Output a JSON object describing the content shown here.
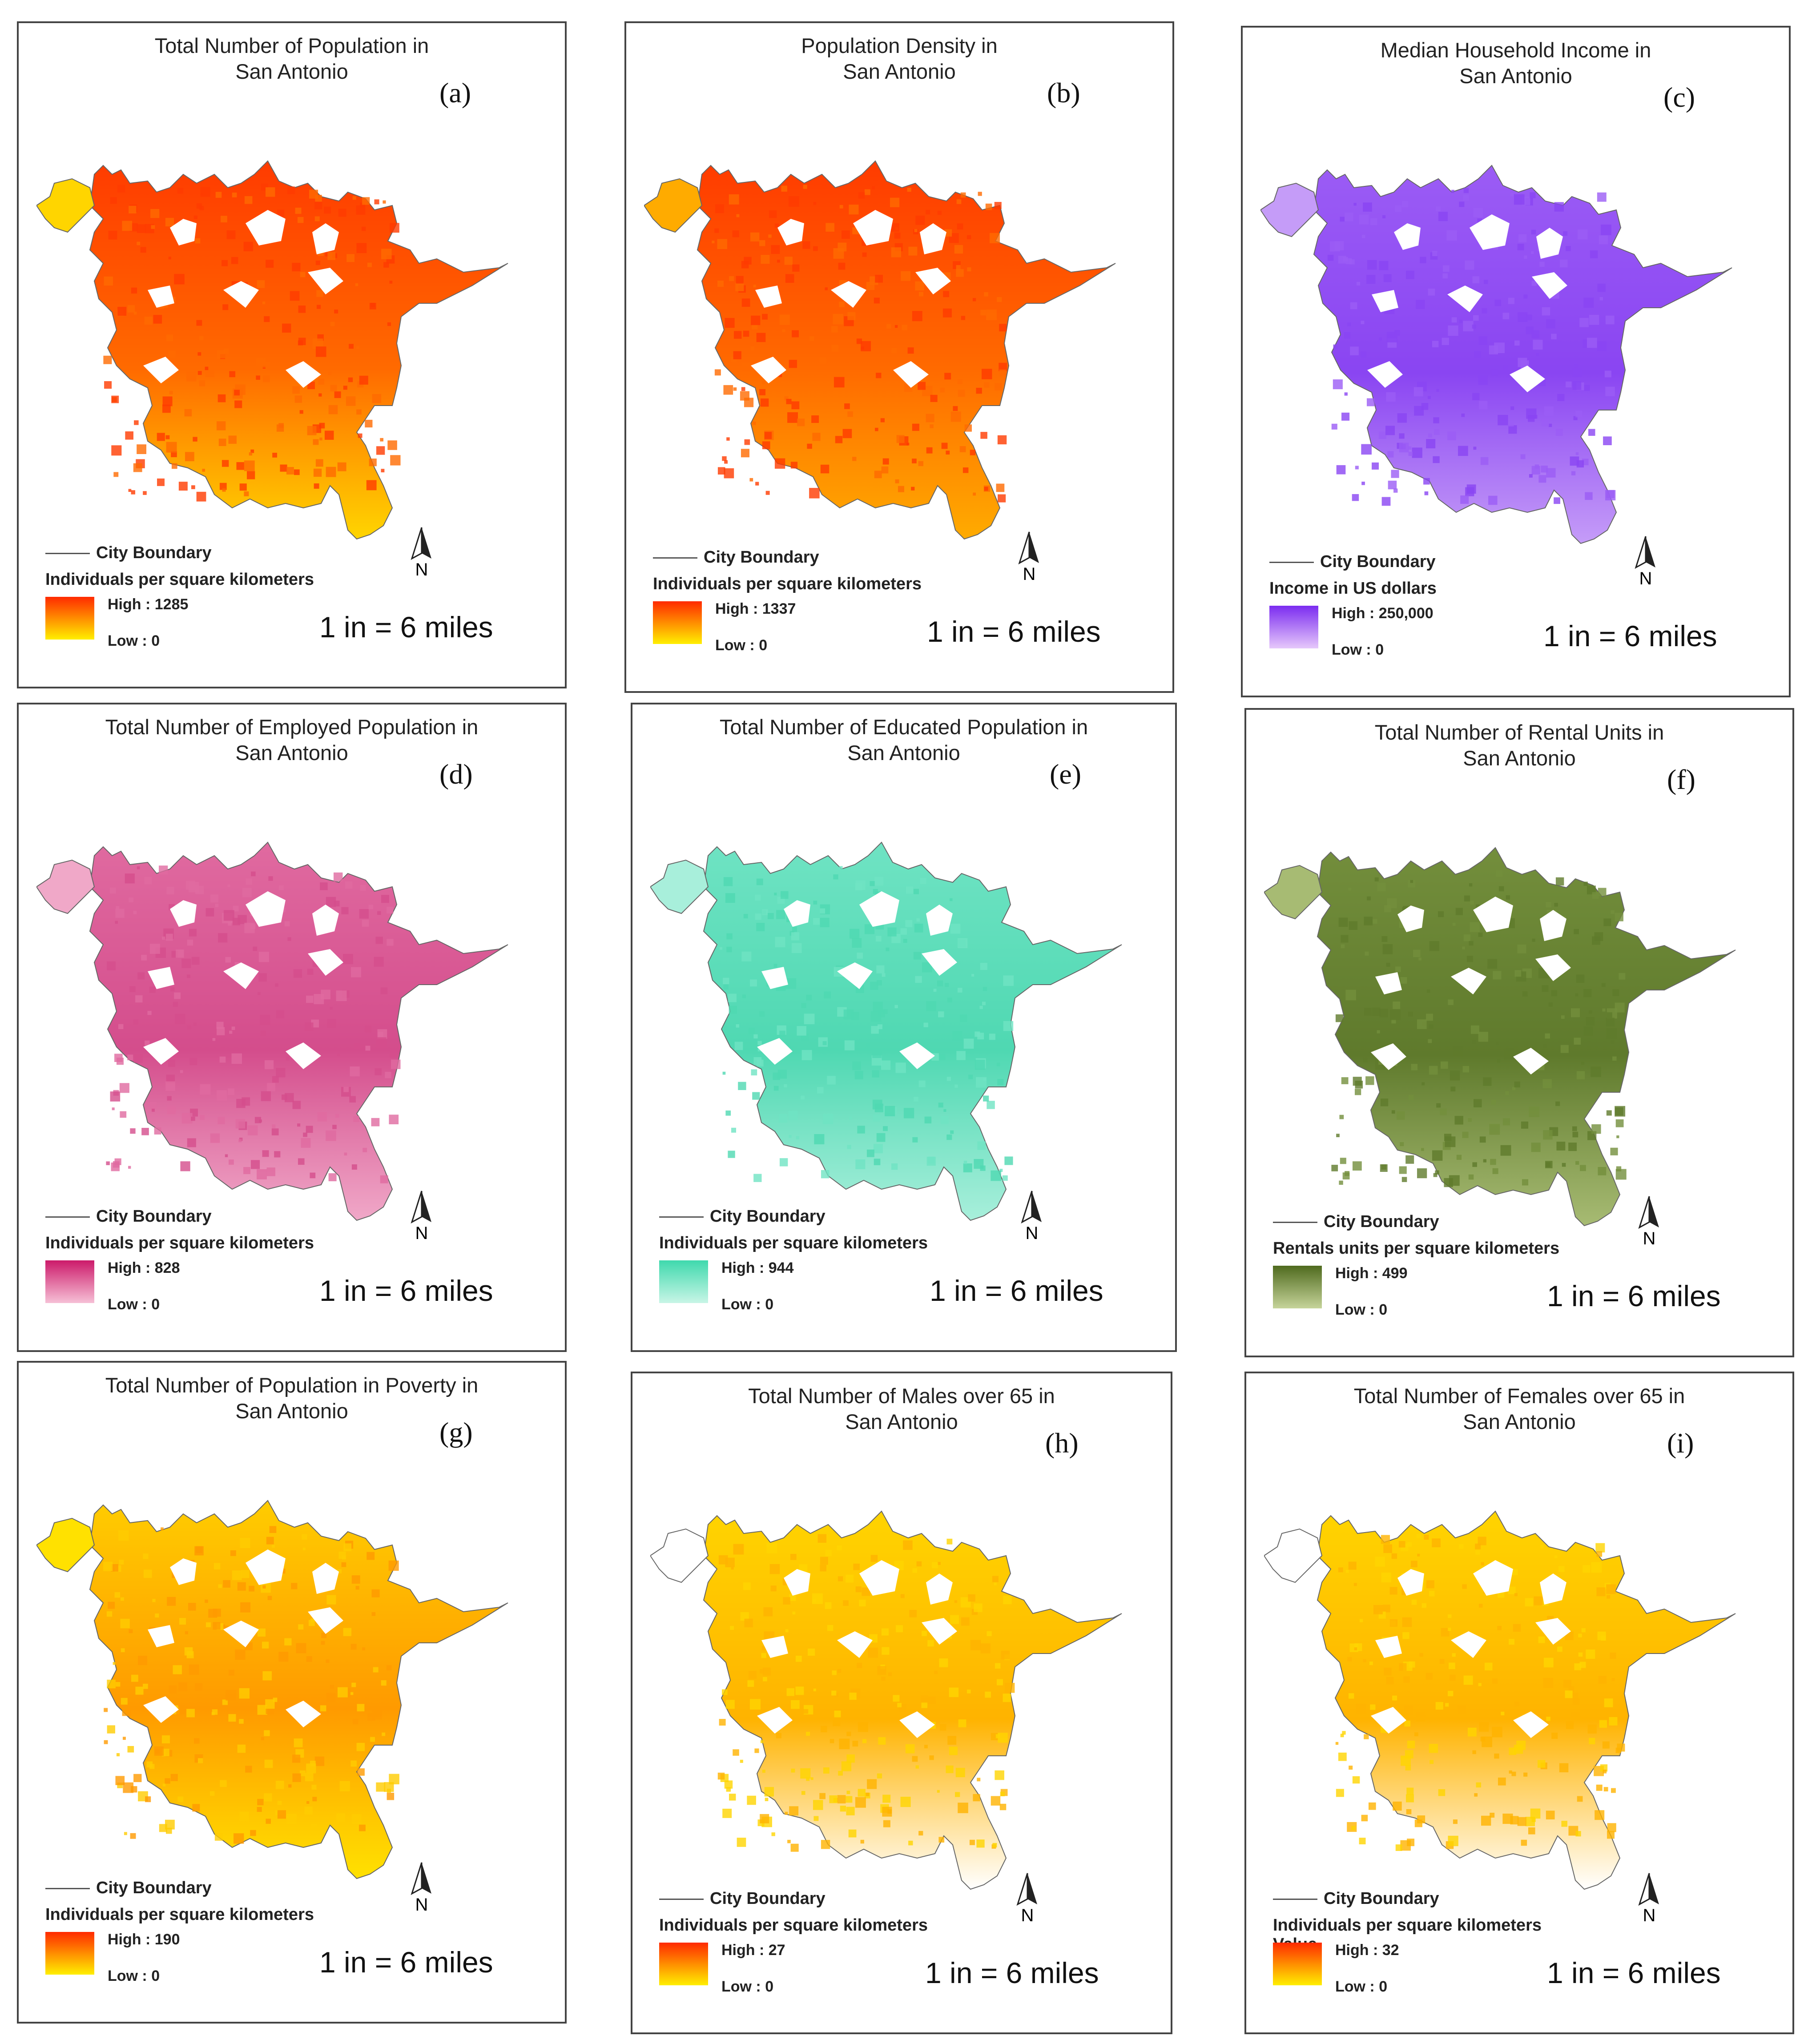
{
  "common": {
    "city_boundary_label": "City Boundary",
    "scale_text": "1 in = 6 miles",
    "north_label": "N"
  },
  "panels": [
    {
      "id": "a",
      "label": "(a)",
      "title_line1": "Total Number of Population in",
      "title_line2": "San Antonio",
      "unit": "Individuals per square kilometers",
      "high": "High : 1285",
      "low": "Low : 0",
      "ramp": [
        "#ffef00",
        "#ff2a00"
      ],
      "fill_colors": [
        "#ff3b00",
        "#ff6a00",
        "#ffd500"
      ]
    },
    {
      "id": "b",
      "label": "(b)",
      "title_line1": "Population Density in",
      "title_line2": "San Antonio",
      "unit": "Individuals per square kilometers",
      "high": "High : 1337",
      "low": "Low : 0",
      "ramp": [
        "#ffef00",
        "#ff2a00"
      ],
      "fill_colors": [
        "#ff3b00",
        "#ff6a00",
        "#ffab00"
      ]
    },
    {
      "id": "c",
      "label": "(c)",
      "title_line1": "Median Household Income in",
      "title_line2": "San Antonio",
      "unit": "Income in US dollars",
      "high": "High : 250,000",
      "low": "Low : 0",
      "ramp": [
        "#e6c8fb",
        "#7b2cf0"
      ],
      "fill_colors": [
        "#9b5cf5",
        "#8a45f2",
        "#c59cf8"
      ]
    },
    {
      "id": "d",
      "label": "(d)",
      "title_line1": "Total Number of Employed Population in",
      "title_line2": "San Antonio",
      "unit": "Individuals per square kilometers",
      "high": "High : 828",
      "low": "Low : 0",
      "ramp": [
        "#f6c0d6",
        "#cc1a6a"
      ],
      "fill_colors": [
        "#e06aa0",
        "#d44d8c",
        "#f0a8c8"
      ]
    },
    {
      "id": "e",
      "label": "(e)",
      "title_line1": "Total Number of Educated Population in",
      "title_line2": "San Antonio",
      "unit": "Individuals per square kilometers",
      "high": "High : 944",
      "low": "Low : 0",
      "ramp": [
        "#c8f5e6",
        "#3fd9ad"
      ],
      "fill_colors": [
        "#6fe3c3",
        "#4fd8b2",
        "#a8efdb"
      ]
    },
    {
      "id": "f",
      "label": "(f)",
      "title_line1": "Total Number of Rental Units in",
      "title_line2": "San Antonio",
      "unit": "Rentals units per square kilometers",
      "high": "High : 499",
      "low": "Low : 0",
      "ramp": [
        "#c6d49a",
        "#4f6a1e"
      ],
      "fill_colors": [
        "#738e3c",
        "#5f7a2c",
        "#a7bb73"
      ]
    },
    {
      "id": "g",
      "label": "(g)",
      "title_line1": "Total Number of Population in Poverty in",
      "title_line2": "San Antonio",
      "unit": "Individuals per square kilometers",
      "high": "High : 190",
      "low": "Low : 0",
      "ramp": [
        "#ffef00",
        "#ff2a00"
      ],
      "fill_colors": [
        "#ffcc00",
        "#ff9a00",
        "#ffe100"
      ]
    },
    {
      "id": "h",
      "label": "(h)",
      "title_line1": "Total Number of Males over 65 in",
      "title_line2": "San Antonio",
      "unit": "Individuals per square kilometers",
      "high": "High : 27",
      "low": "Low : 0",
      "ramp": [
        "#ffef00",
        "#ff2a00"
      ],
      "fill_colors": [
        "#ffd400",
        "#ffb300",
        "#ffffff"
      ]
    },
    {
      "id": "i",
      "label": "(i)",
      "title_line1": "Total Number of Females over 65 in",
      "title_line2": "San Antonio",
      "unit": "Individuals per square kilometers",
      "unit2": "Value",
      "high": "High : 32",
      "low": "Low : 0",
      "ramp": [
        "#ffef00",
        "#ff2a00"
      ],
      "fill_colors": [
        "#ffd400",
        "#ffb300",
        "#ffffff"
      ]
    }
  ]
}
